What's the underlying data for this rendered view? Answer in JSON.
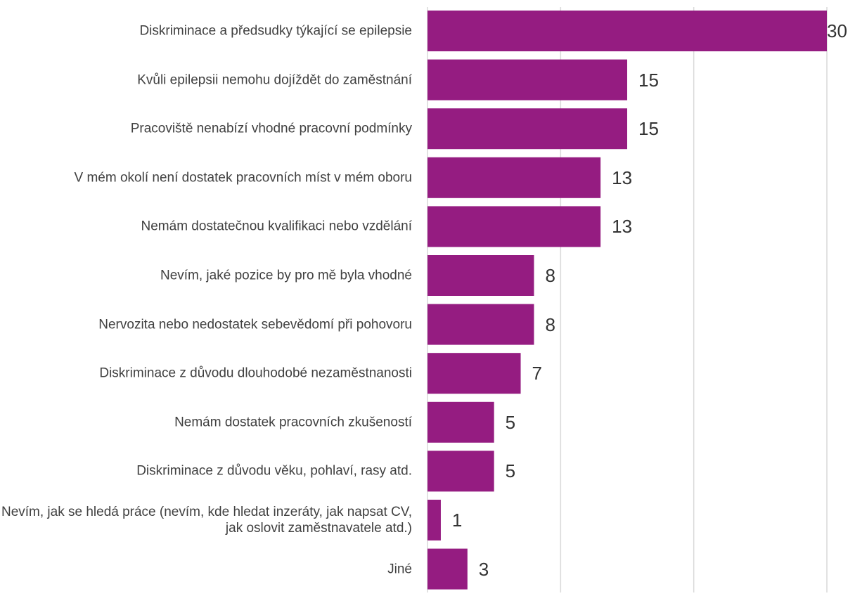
{
  "chart_data": {
    "type": "bar",
    "orientation": "horizontal",
    "categories": [
      "Diskriminace a předsudky týkající se epilepsie",
      "Kvůli epilepsii nemohu dojíždět do zaměstnání",
      "Pracoviště nenabízí vhodné pracovní podmínky",
      "V mém okolí není dostatek pracovních míst v mém oboru",
      "Nemám dostatečnou kvalifikaci nebo vzdělání",
      "Nevím, jaké pozice by pro mě byla vhodné",
      "Nervozita nebo nedostatek sebevědomí při pohovoru",
      "Diskriminace z důvodu dlouhodobé nezaměstnanosti",
      "Nemám dostatek pracovních zkušeností",
      "Diskriminace z důvodu věku, pohlaví, rasy atd.",
      "Nevím, jak se hledá práce (nevím, kde hledat inzeráty, jak napsat CV, jak oslovit zaměstnavatele atd.)",
      "Jiné"
    ],
    "values": [
      30,
      15,
      15,
      13,
      13,
      8,
      8,
      7,
      5,
      5,
      1,
      3
    ],
    "value_labels": [
      "30",
      "15",
      "15",
      "13",
      "13",
      "8",
      "8",
      "7",
      "5",
      "5",
      "1",
      "3"
    ],
    "xlim": [
      0,
      30
    ],
    "grid": true,
    "bar_color": "#951C81",
    "gridline_color": "#D9D9D9"
  }
}
